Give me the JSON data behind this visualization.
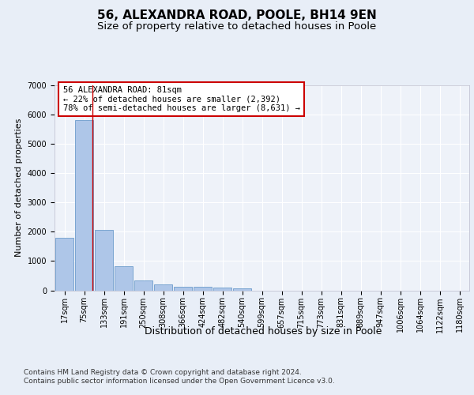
{
  "title1": "56, ALEXANDRA ROAD, POOLE, BH14 9EN",
  "title2": "Size of property relative to detached houses in Poole",
  "xlabel": "Distribution of detached houses by size in Poole",
  "ylabel": "Number of detached properties",
  "categories": [
    "17sqm",
    "75sqm",
    "133sqm",
    "191sqm",
    "250sqm",
    "308sqm",
    "366sqm",
    "424sqm",
    "482sqm",
    "540sqm",
    "599sqm",
    "657sqm",
    "715sqm",
    "773sqm",
    "831sqm",
    "889sqm",
    "947sqm",
    "1006sqm",
    "1064sqm",
    "1122sqm",
    "1180sqm"
  ],
  "values": [
    1780,
    5800,
    2060,
    820,
    340,
    190,
    120,
    110,
    100,
    80,
    0,
    0,
    0,
    0,
    0,
    0,
    0,
    0,
    0,
    0,
    0
  ],
  "bar_color": "#aec6e8",
  "bar_edge_color": "#5a8fc4",
  "vline_color": "#cc0000",
  "vline_x": 1.43,
  "annotation_text": "56 ALEXANDRA ROAD: 81sqm\n← 22% of detached houses are smaller (2,392)\n78% of semi-detached houses are larger (8,631) →",
  "annotation_box_color": "#ffffff",
  "annotation_box_edge": "#cc0000",
  "ylim": [
    0,
    7000
  ],
  "yticks": [
    0,
    1000,
    2000,
    3000,
    4000,
    5000,
    6000,
    7000
  ],
  "bg_color": "#e8eef7",
  "plot_bg_color": "#eef2f9",
  "footer": "Contains HM Land Registry data © Crown copyright and database right 2024.\nContains public sector information licensed under the Open Government Licence v3.0.",
  "title1_fontsize": 11,
  "title2_fontsize": 9.5,
  "xlabel_fontsize": 9,
  "ylabel_fontsize": 8,
  "tick_fontsize": 7,
  "annotation_fontsize": 7.5,
  "footer_fontsize": 6.5
}
